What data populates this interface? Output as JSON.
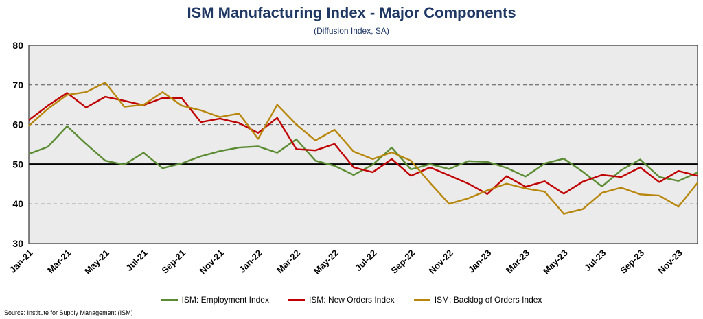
{
  "chart_data": {
    "type": "line",
    "title": "ISM Manufacturing Index - Major Components",
    "subtitle": "(Diffusion Index, SA)",
    "ylim": [
      30,
      80
    ],
    "yticks": [
      30,
      40,
      50,
      60,
      70,
      80
    ],
    "reference_line": 50,
    "grid": "horizontal dashed",
    "legend_position": "bottom",
    "x": [
      "Jan-21",
      "Feb-21",
      "Mar-21",
      "Apr-21",
      "May-21",
      "Jun-21",
      "Jul-21",
      "Aug-21",
      "Sep-21",
      "Oct-21",
      "Nov-21",
      "Dec-21",
      "Jan-22",
      "Feb-22",
      "Mar-22",
      "Apr-22",
      "May-22",
      "Jun-22",
      "Jul-22",
      "Aug-22",
      "Sep-22",
      "Oct-22",
      "Nov-22",
      "Dec-22",
      "Jan-23",
      "Feb-23",
      "Mar-23",
      "Apr-23",
      "May-23",
      "Jun-23",
      "Jul-23",
      "Aug-23",
      "Sep-23",
      "Oct-23",
      "Nov-23",
      "Dec-23"
    ],
    "x_tick_labels": [
      "Jan-21",
      "Mar-21",
      "May-21",
      "Jul-21",
      "Sep-21",
      "Nov-21",
      "Jan-22",
      "Mar-22",
      "May-22",
      "Jul-22",
      "Sep-22",
      "Nov-22",
      "Jan-23",
      "Mar-23",
      "May-23",
      "Jul-23",
      "Sep-23",
      "Nov-23"
    ],
    "series": [
      {
        "name": "ISM: Employment Index",
        "color": "#5B8C32",
        "values": [
          52.6,
          54.4,
          59.6,
          55.1,
          50.9,
          49.9,
          52.9,
          49.0,
          50.2,
          52.0,
          53.3,
          54.2,
          54.5,
          52.9,
          56.3,
          50.9,
          49.6,
          47.3,
          49.9,
          54.2,
          48.7,
          50.0,
          48.8,
          50.8,
          50.6,
          49.1,
          46.9,
          50.2,
          51.4,
          48.1,
          44.4,
          48.5,
          51.2,
          46.8,
          45.8,
          47.9
        ]
      },
      {
        "name": "ISM: New Orders Index",
        "color": "#C00000",
        "values": [
          61.1,
          64.8,
          68.0,
          64.3,
          67.0,
          66.0,
          64.9,
          66.7,
          66.7,
          60.6,
          61.5,
          60.4,
          57.9,
          61.7,
          53.8,
          53.5,
          55.1,
          49.2,
          48.0,
          51.3,
          47.1,
          49.2,
          47.2,
          45.1,
          42.5,
          47.0,
          44.3,
          45.7,
          42.6,
          45.6,
          47.3,
          46.8,
          49.2,
          45.5,
          48.3,
          47.1
        ]
      },
      {
        "name": "ISM: Backlog of Orders Index",
        "color": "#B8860B",
        "values": [
          59.7,
          64.0,
          67.5,
          68.2,
          70.6,
          64.5,
          65.0,
          68.2,
          64.8,
          63.6,
          61.9,
          62.8,
          56.4,
          65.0,
          60.0,
          56.0,
          58.7,
          53.2,
          51.3,
          53.0,
          50.9,
          45.3,
          40.0,
          41.4,
          43.4,
          45.1,
          43.9,
          43.1,
          37.5,
          38.7,
          42.8,
          44.1,
          42.4,
          42.1,
          39.3,
          45.3
        ]
      }
    ]
  },
  "source": "Source: Institute for Supply Management (ISM)"
}
